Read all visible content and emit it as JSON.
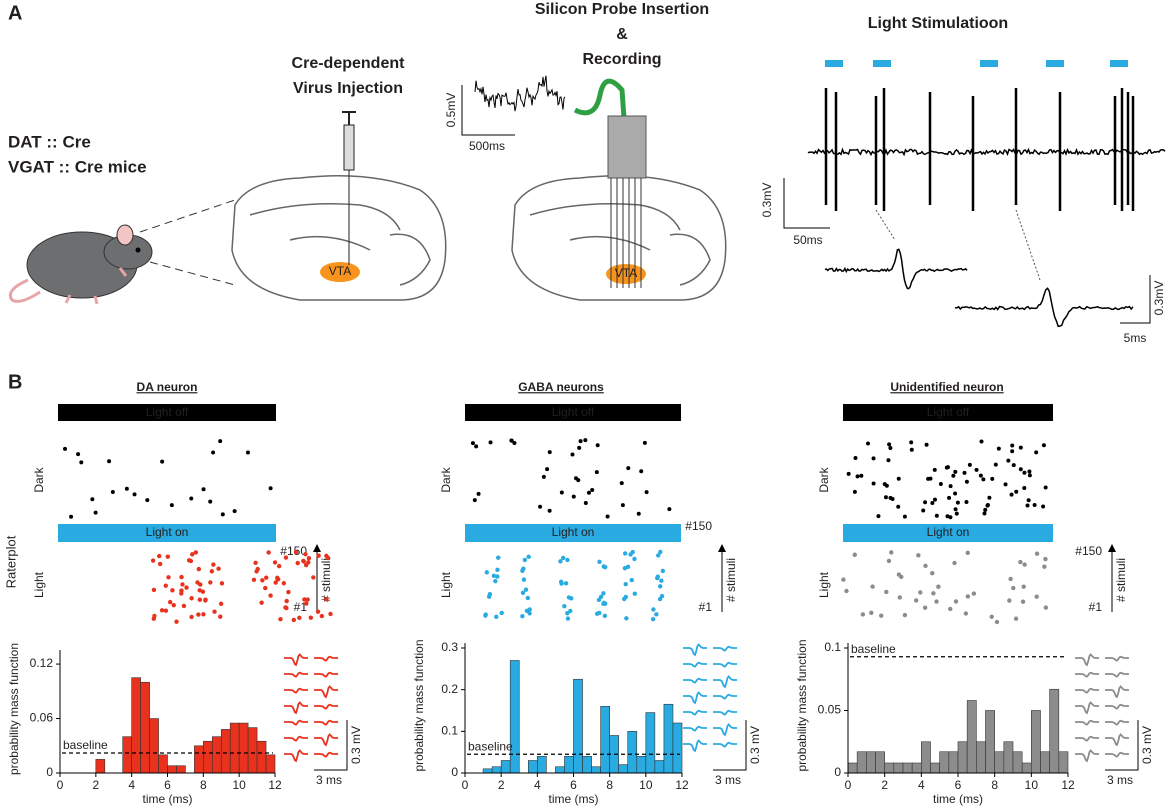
{
  "panel_a": {
    "label": "A",
    "mouse_line1": "DAT :: Cre",
    "mouse_line2": "VGAT :: Cre mice",
    "injection_line1": "Cre-dependent",
    "injection_line2": "Virus Injection",
    "probe_line1": "Silicon Probe Insertion",
    "probe_line2": "&",
    "probe_line3": "Recording",
    "light_title": "Light Stimulatioon",
    "trace_scale_y": "0.5mV",
    "trace_scale_x": "500ms",
    "spike_scale_y": "0.3mV",
    "spike_scale_x": "50ms",
    "wave_scale_y": "0.3mV",
    "wave_scale_x": "5ms",
    "vta_left": "VTA",
    "vta_right": "VTA"
  },
  "panel_b": {
    "label": "B",
    "row_label": "Raterplot"
  },
  "chart_data": [
    {
      "type": "histogram",
      "title": "DA neuron",
      "color": "#e8321e",
      "bins": [
        0,
        0.5,
        1,
        1.5,
        2,
        2.5,
        3,
        3.5,
        4,
        4.5,
        5,
        5.5,
        6,
        6.5,
        7,
        7.5,
        8,
        8.5,
        9,
        9.5,
        10,
        10.5,
        11,
        11.5,
        12
      ],
      "values": [
        0,
        0,
        0,
        0,
        0.015,
        0,
        0,
        0.04,
        0.105,
        0.1,
        0.06,
        0.02,
        0.008,
        0.008,
        0,
        0.03,
        0.035,
        0.04,
        0.048,
        0.055,
        0.055,
        0.05,
        0.035,
        0.02
      ],
      "xlim": [
        0,
        12
      ],
      "ylim": [
        0,
        0.13
      ],
      "xticks": [
        0,
        2,
        4,
        6,
        8,
        10,
        12
      ],
      "yticks": [
        0,
        0.06,
        0.12
      ],
      "xlabel": "time (ms)",
      "ylabel": "probability mass function",
      "baseline": 0.022,
      "baseline_label": "baseline",
      "raster": {
        "off_label": "Light off",
        "dark_label": "Dark",
        "on_label": "Light on",
        "light_label": "Light",
        "top_label": "#150",
        "bottom_label": "#1",
        "axis_label": "# stimuli"
      },
      "scale": {
        "y": "0.3 mV",
        "x": "3 ms"
      }
    },
    {
      "type": "histogram",
      "title": "GABA neurons",
      "color": "#29abe2",
      "bins": [
        0,
        0.5,
        1,
        1.5,
        2,
        2.5,
        3,
        3.5,
        4,
        4.5,
        5,
        5.5,
        6,
        6.5,
        7,
        7.5,
        8,
        8.5,
        9,
        9.5,
        10,
        10.5,
        11,
        11.5,
        12
      ],
      "values": [
        0,
        0,
        0.01,
        0.015,
        0.03,
        0.27,
        0,
        0.03,
        0.04,
        0,
        0.015,
        0.04,
        0.225,
        0.04,
        0.015,
        0.16,
        0.09,
        0.02,
        0.1,
        0.04,
        0.145,
        0.03,
        0.165,
        0.12
      ],
      "xlim": [
        0,
        12
      ],
      "ylim": [
        0,
        0.3
      ],
      "xticks": [
        0,
        2,
        4,
        6,
        8,
        10,
        12
      ],
      "yticks": [
        0,
        0.1,
        0.2,
        0.3
      ],
      "xlabel": "time (ms)",
      "ylabel": "probability mass function",
      "baseline": 0.045,
      "baseline_label": "baseline",
      "raster": {
        "off_label": "Light off",
        "dark_label": "Dark",
        "on_label": "Light on",
        "light_label": "Light",
        "top_label": "#150",
        "bottom_label": "#1",
        "axis_label": "# stimuli"
      },
      "scale": {
        "y": "0.3 mV",
        "x": "3 ms"
      }
    },
    {
      "type": "histogram",
      "title": "Unidentified neuron",
      "color": "#8c8c8c",
      "bins": [
        0,
        0.5,
        1,
        1.5,
        2,
        2.5,
        3,
        3.5,
        4,
        4.5,
        5,
        5.5,
        6,
        6.5,
        7,
        7.5,
        8,
        8.5,
        9,
        9.5,
        10,
        10.5,
        11,
        11.5,
        12
      ],
      "values": [
        0.008,
        0.017,
        0.017,
        0.017,
        0.008,
        0.008,
        0.008,
        0.008,
        0.025,
        0.008,
        0.017,
        0.017,
        0.025,
        0.058,
        0.025,
        0.05,
        0.017,
        0.025,
        0.017,
        0.008,
        0.05,
        0.017,
        0.067,
        0.017
      ],
      "xlim": [
        0,
        12
      ],
      "ylim": [
        0,
        0.1
      ],
      "xticks": [
        0,
        2,
        4,
        6,
        8,
        10,
        12
      ],
      "yticks": [
        0,
        0.05,
        0.1
      ],
      "xlabel": "time (ms)",
      "ylabel": "probability mass function",
      "baseline": 0.093,
      "baseline_label": "baseline",
      "raster": {
        "off_label": "Light off",
        "dark_label": "Dark",
        "on_label": "Light on",
        "light_label": "Light",
        "top_label": "#150",
        "bottom_label": "#1",
        "axis_label": "# stimuli"
      },
      "scale": {
        "y": "0.3 mV",
        "x": "3 ms"
      }
    }
  ]
}
